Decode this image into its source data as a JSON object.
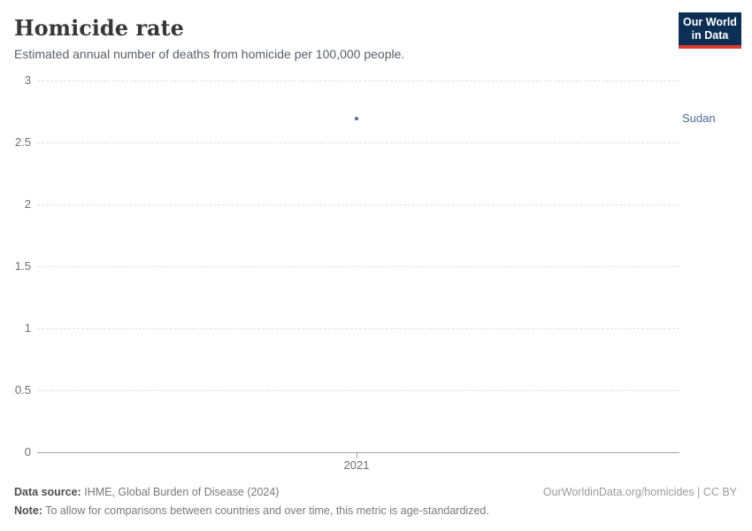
{
  "logo": {
    "line1": "Our World",
    "line2": "in Data",
    "bg_color": "#0d2e55",
    "accent_color": "#dc3a30"
  },
  "chart_data": {
    "type": "scatter",
    "title": "Homicide rate",
    "subtitle": "Estimated annual number of deaths from homicide per 100,000 people.",
    "xlabel": "",
    "ylabel": "",
    "ylim": [
      0,
      3
    ],
    "yticks": [
      0,
      0.5,
      1,
      1.5,
      2,
      2.5,
      3
    ],
    "xticks": [
      "2021"
    ],
    "grid": true,
    "legend_position": "entity-label-right",
    "series": [
      {
        "name": "Sudan",
        "color": "#4C6A9C",
        "points": [
          {
            "x": "2021",
            "y": 2.69
          }
        ]
      }
    ]
  },
  "colors": {
    "grid": "#e0e0e0",
    "axis": "#a1a1a1",
    "tick_label": "#6e6e6e"
  },
  "footer": {
    "source_label": "Data source:",
    "source_text": "IHME, Global Burden of Disease (2024)",
    "link": "OurWorldinData.org/homicides | CC BY",
    "note_label": "Note:",
    "note_text": "To allow for comparisons between countries and over time, this metric is age-standardized."
  }
}
